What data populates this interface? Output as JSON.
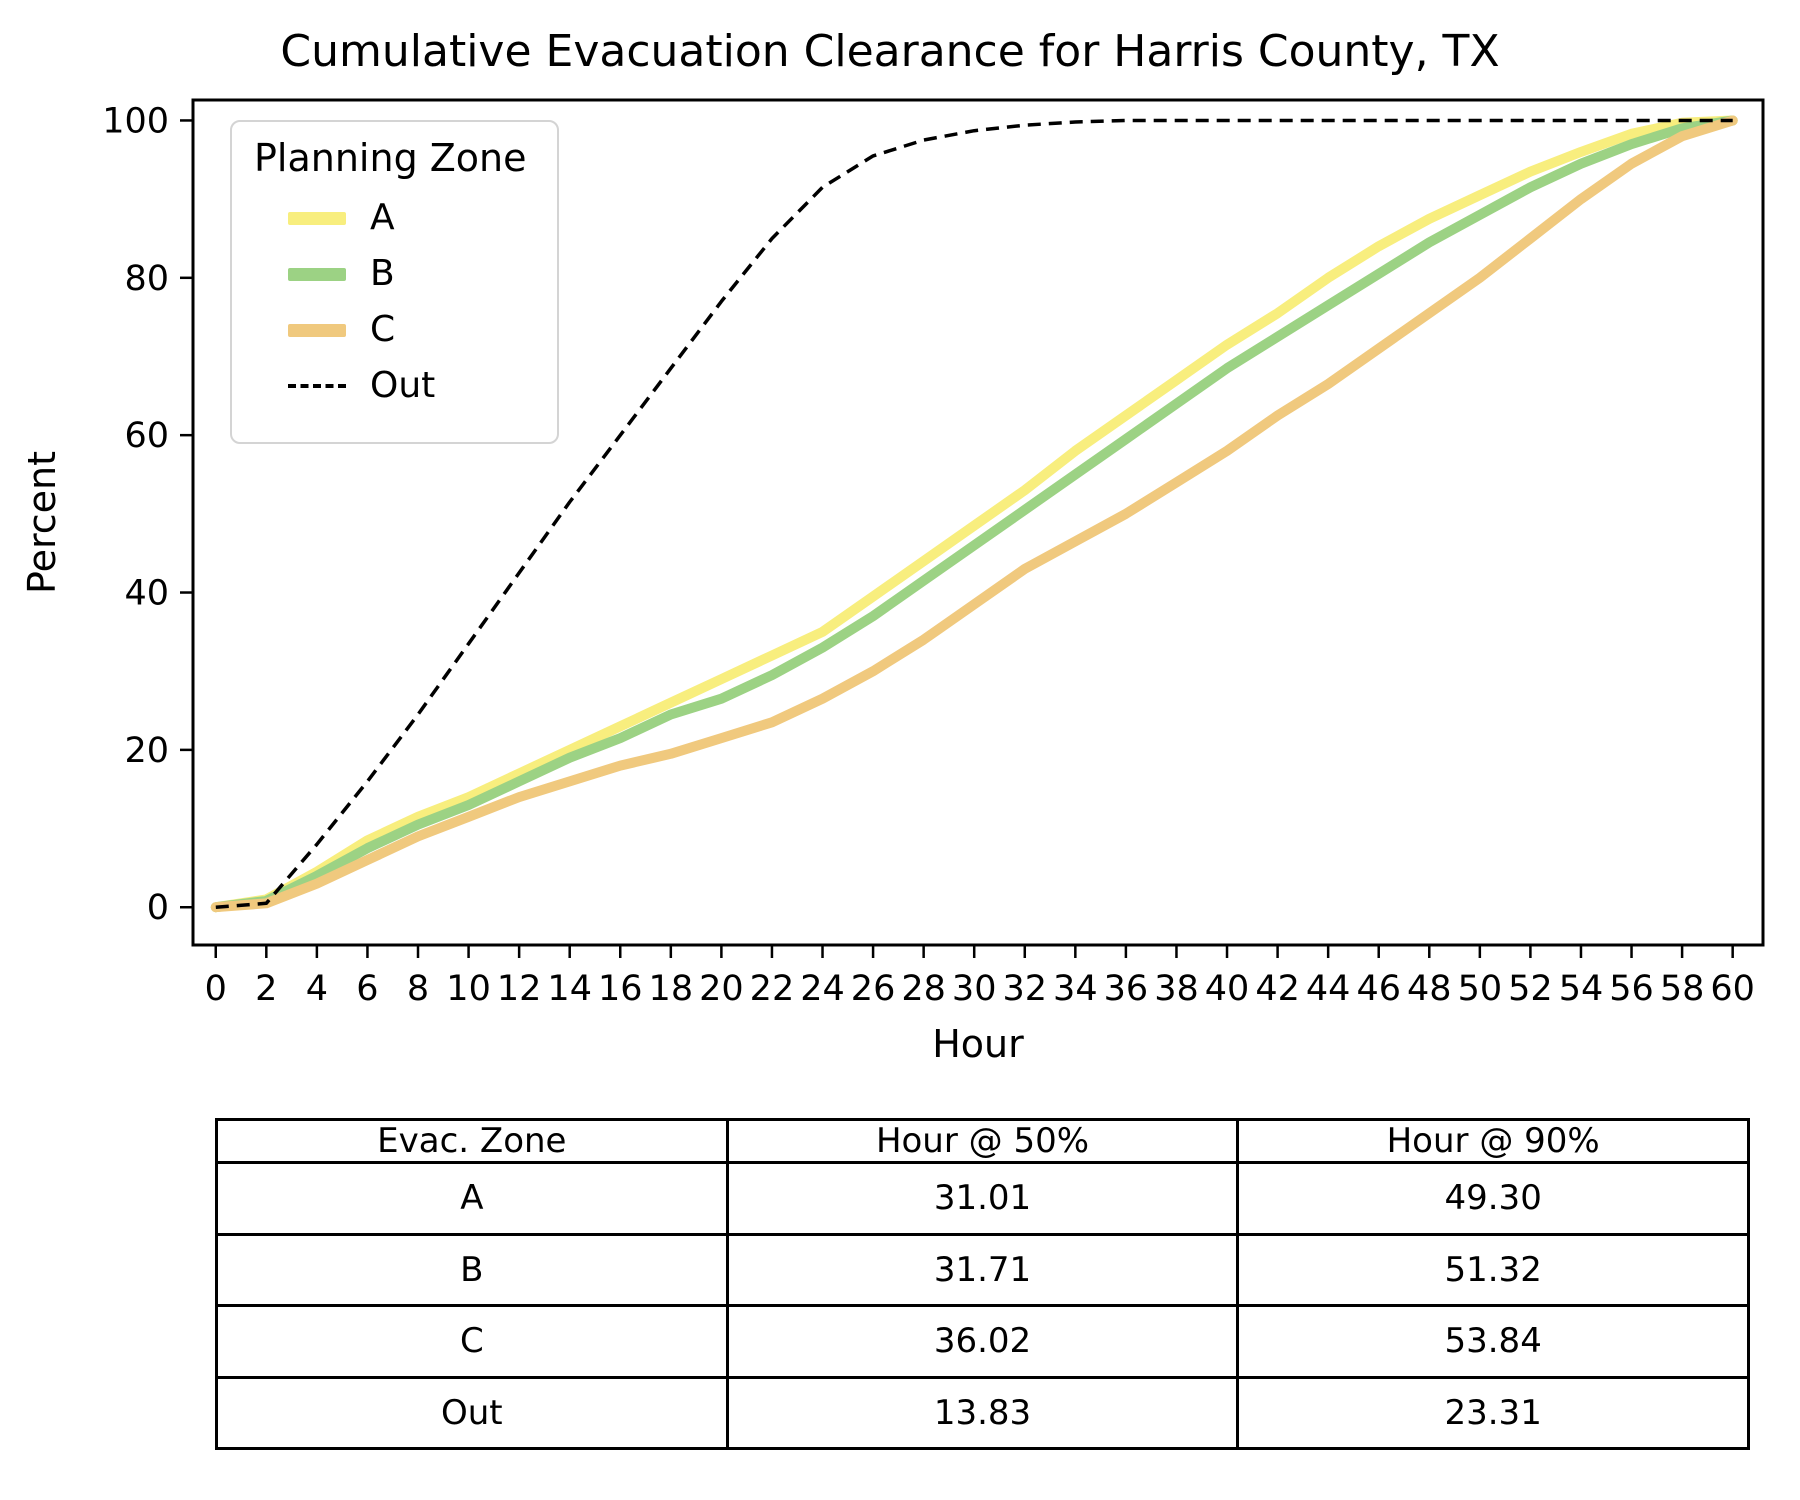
{
  "chart_data": {
    "type": "line",
    "title": "Cumulative Evacuation Clearance for Harris County, TX",
    "xlabel": "Hour",
    "ylabel": "Percent",
    "xlim": [
      -0.9,
      61.2
    ],
    "ylim": [
      -4.8,
      102.6
    ],
    "x_ticks": [
      0,
      2,
      4,
      6,
      8,
      10,
      12,
      14,
      16,
      18,
      20,
      22,
      24,
      26,
      28,
      30,
      32,
      34,
      36,
      38,
      40,
      42,
      44,
      46,
      48,
      50,
      52,
      54,
      56,
      58,
      60
    ],
    "y_ticks": [
      0,
      20,
      40,
      60,
      80,
      100
    ],
    "grid": false,
    "legend": {
      "title": "Planning Zone",
      "position": "upper-left"
    },
    "x": [
      0,
      2,
      4,
      6,
      8,
      10,
      12,
      14,
      16,
      18,
      20,
      22,
      24,
      26,
      28,
      30,
      32,
      34,
      36,
      38,
      40,
      42,
      44,
      46,
      48,
      50,
      52,
      54,
      56,
      58,
      60
    ],
    "series": [
      {
        "name": "A",
        "color": "#F8EE7E",
        "style": "solid",
        "line_width": 10,
        "values": [
          0,
          1,
          4.5,
          8.5,
          11.5,
          14,
          17,
          20,
          23,
          26,
          29,
          32,
          35,
          39.5,
          44,
          48.5,
          53,
          58,
          62.5,
          67,
          71.5,
          75.5,
          80,
          84,
          87.5,
          90.5,
          93.5,
          96,
          98.3,
          99.7,
          100
        ]
      },
      {
        "name": "B",
        "color": "#9CD284",
        "style": "solid",
        "line_width": 10,
        "values": [
          0,
          0.8,
          4,
          7.5,
          10.5,
          13,
          16,
          19,
          21.5,
          24.5,
          26.5,
          29.5,
          33,
          37,
          41.5,
          46,
          50.5,
          55,
          59.5,
          64,
          68.5,
          72.5,
          76.5,
          80.5,
          84.5,
          88,
          91.5,
          94.5,
          97,
          99,
          100
        ]
      },
      {
        "name": "C",
        "color": "#F0C97E",
        "style": "solid",
        "line_width": 10,
        "values": [
          0,
          0.5,
          3,
          6,
          9,
          11.5,
          14,
          16,
          18,
          19.5,
          21.5,
          23.5,
          26.5,
          30,
          34,
          38.5,
          43,
          46.5,
          50,
          54,
          58,
          62.5,
          66.5,
          71,
          75.5,
          80,
          85,
          90,
          94.5,
          98,
          100
        ]
      },
      {
        "name": "Out",
        "color": "#000000",
        "style": "dashed",
        "line_width": 3.5,
        "values": [
          0,
          0.5,
          8,
          16,
          24.5,
          33.5,
          42.5,
          51.5,
          60,
          68.5,
          77,
          85,
          91.5,
          95.5,
          97.5,
          98.7,
          99.4,
          99.8,
          100,
          100,
          100,
          100,
          100,
          100,
          100,
          100,
          100,
          100,
          100,
          100,
          100
        ]
      }
    ]
  },
  "table": {
    "headers": [
      "Evac. Zone",
      "Hour @ 50%",
      "Hour @ 90%"
    ],
    "rows": [
      {
        "zone": "A",
        "h50": "31.01",
        "h90": "49.30"
      },
      {
        "zone": "B",
        "h50": "31.71",
        "h90": "51.32"
      },
      {
        "zone": "C",
        "h50": "36.02",
        "h90": "53.84"
      },
      {
        "zone": "Out",
        "h50": "13.83",
        "h90": "23.31"
      }
    ]
  }
}
